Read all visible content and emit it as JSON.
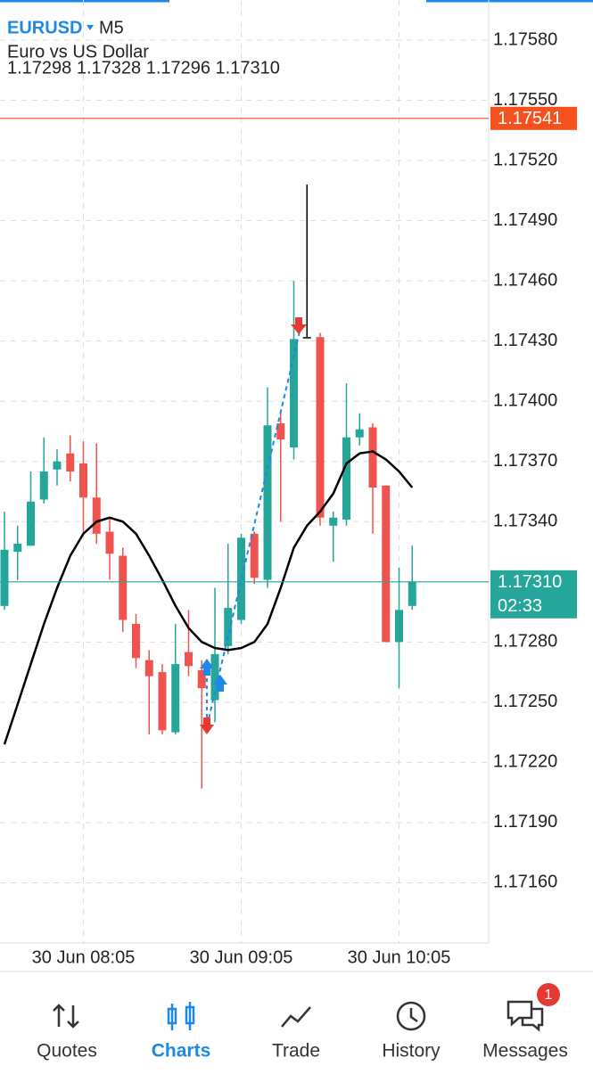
{
  "header": {
    "symbol": "EURUSD",
    "timeframe": "M5",
    "description": "Euro vs US Dollar",
    "ohlc": "1.17298 1.17328 1.17296 1.17310"
  },
  "chart_data": {
    "type": "candlestick",
    "categories": [
      null,
      null,
      null,
      null,
      null,
      null,
      "30 Jun 08:05",
      null,
      null,
      null,
      null,
      null,
      null,
      null,
      null,
      null,
      null,
      null,
      "30 Jun 09:05",
      null,
      null,
      null,
      null,
      null,
      null,
      null,
      null,
      null,
      null,
      null,
      "30 Jun 10:05",
      null
    ],
    "open": [
      1.17298,
      1.17325,
      1.17328,
      1.17351,
      1.17366,
      1.17374,
      1.17369,
      1.17352,
      1.17335,
      1.17323,
      1.17289,
      1.17271,
      1.17265,
      1.17235,
      1.17275,
      1.17266,
      1.17251,
      1.17278,
      1.17291,
      1.17334,
      1.17311,
      1.17389,
      1.17377,
      1.17432,
      1.17432,
      1.17338,
      1.17341,
      1.17382,
      1.17387,
      1.17358,
      1.1728,
      1.17298
    ],
    "high": [
      1.17345,
      1.17338,
      1.17365,
      1.17382,
      1.17376,
      1.17383,
      1.1738,
      1.17379,
      1.17342,
      1.17327,
      1.17294,
      1.17276,
      1.17269,
      1.17289,
      1.17296,
      1.17271,
      1.17307,
      1.17329,
      1.17334,
      1.17335,
      1.17407,
      1.17396,
      1.1746,
      1.17508,
      1.17434,
      1.17345,
      1.17409,
      1.17394,
      1.17389,
      1.17358,
      1.17317,
      1.17328
    ],
    "low": [
      1.17296,
      1.17311,
      1.17328,
      1.17349,
      1.17358,
      1.1736,
      1.17334,
      1.17329,
      1.17311,
      1.17285,
      1.17267,
      1.17234,
      1.17234,
      1.17234,
      1.17263,
      1.17207,
      1.1724,
      1.17274,
      1.17289,
      1.17309,
      1.17307,
      1.1734,
      1.17371,
      1.17432,
      1.17338,
      1.1732,
      1.17338,
      1.17378,
      1.17334,
      1.1728,
      1.17257,
      1.17296
    ],
    "close": [
      1.17326,
      1.17329,
      1.1735,
      1.17365,
      1.1737,
      1.17365,
      1.17352,
      1.17334,
      1.17324,
      1.17291,
      1.17272,
      1.17263,
      1.17236,
      1.17269,
      1.17268,
      1.17257,
      1.17274,
      1.17297,
      1.17332,
      1.17312,
      1.17388,
      1.17381,
      1.17431,
      1.17432,
      1.17342,
      1.17342,
      1.17382,
      1.17386,
      1.17357,
      1.1728,
      1.17296,
      1.1731
    ],
    "up_color": "#26a69a",
    "down_color": "#ef5350",
    "moving_average": {
      "color": "#000000",
      "values": [
        1.17229,
        1.17249,
        1.17269,
        1.17289,
        1.17307,
        1.17323,
        1.17334,
        1.1734,
        1.17342,
        1.1734,
        1.17334,
        1.17323,
        1.17311,
        1.17298,
        1.17287,
        1.1728,
        1.17277,
        1.17276,
        1.17277,
        1.1728,
        1.17289,
        1.17307,
        1.17327,
        1.17338,
        1.17345,
        1.17354,
        1.17369,
        1.17374,
        1.17375,
        1.17371,
        1.17365,
        1.17357
      ]
    },
    "ylim": [
      1.1713,
      1.176
    ],
    "yticks": [
      {
        "value": 1.1758,
        "label": "1.17580"
      },
      {
        "value": 1.1755,
        "label": "1.17550"
      },
      {
        "value": 1.1752,
        "label": "1.17520"
      },
      {
        "value": 1.1749,
        "label": "1.17490"
      },
      {
        "value": 1.1746,
        "label": "1.17460"
      },
      {
        "value": 1.1743,
        "label": "1.17430"
      },
      {
        "value": 1.174,
        "label": "1.17400"
      },
      {
        "value": 1.1737,
        "label": "1.17370"
      },
      {
        "value": 1.1734,
        "label": "1.17340"
      },
      {
        "value": 1.1731,
        "label": "1.17310"
      },
      {
        "value": 1.1728,
        "label": "1.17280"
      },
      {
        "value": 1.1725,
        "label": "1.17250"
      },
      {
        "value": 1.1722,
        "label": "1.17220"
      },
      {
        "value": 1.1719,
        "label": "1.17190"
      },
      {
        "value": 1.1716,
        "label": "1.17160"
      }
    ],
    "grid": true,
    "price_lines": [
      {
        "value": 1.17541,
        "label": "1.17541",
        "color": "#f4511e"
      },
      {
        "value": 1.1731,
        "label": "1.17310",
        "time": "02:33",
        "color": "#26a69a"
      }
    ]
  },
  "nav": {
    "items": [
      "Quotes",
      "Charts",
      "Trade",
      "History",
      "Messages"
    ],
    "active": 1,
    "badge": "1"
  }
}
